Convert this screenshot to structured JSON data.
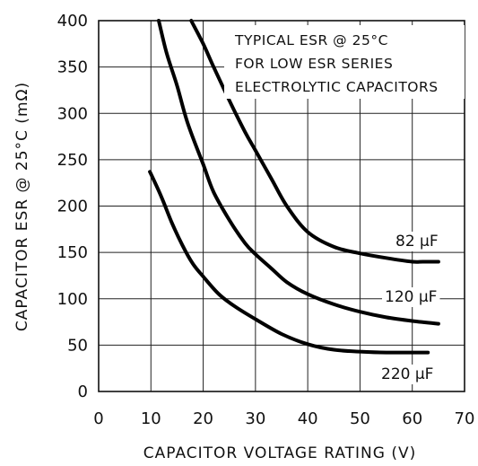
{
  "chart_data": {
    "type": "line",
    "title": "",
    "annotation": [
      "TYPICAL ESR @ 25°C",
      "FOR LOW ESR SERIES",
      "ELECTROLYTIC CAPACITORS"
    ],
    "xlabel": "CAPACITOR VOLTAGE RATING (V)",
    "ylabel": "CAPACITOR ESR @ 25°C (mΩ)",
    "xlim": [
      0,
      70
    ],
    "ylim": [
      0,
      400
    ],
    "xticks": [
      0,
      10,
      20,
      30,
      40,
      50,
      60,
      70
    ],
    "yticks": [
      0,
      50,
      100,
      150,
      200,
      250,
      300,
      350,
      400
    ],
    "grid": true,
    "series": [
      {
        "name": "82 μF",
        "x": [
          17.7,
          20,
          22,
          25,
          28,
          30,
          33,
          36,
          40,
          45,
          50,
          55,
          60,
          62,
          65
        ],
        "y": [
          400,
          375,
          350,
          314,
          280,
          260,
          230,
          200,
          172,
          156,
          149,
          144,
          140,
          140,
          140
        ]
      },
      {
        "name": "120 μF",
        "x": [
          11.5,
          13,
          15,
          17,
          20,
          22,
          25,
          28,
          30,
          33,
          36,
          40,
          45,
          50,
          55,
          60,
          65
        ],
        "y": [
          400,
          365,
          330,
          290,
          245,
          215,
          185,
          160,
          148,
          133,
          118,
          105,
          94,
          86,
          80,
          76,
          73
        ]
      },
      {
        "name": "220 μF",
        "x": [
          9.8,
          12,
          14,
          16,
          18,
          20,
          23,
          26,
          30,
          35,
          40,
          45,
          50,
          55,
          60,
          63
        ],
        "y": [
          237,
          210,
          182,
          158,
          138,
          124,
          105,
          92,
          78,
          62,
          51,
          45,
          43,
          42,
          42,
          42
        ]
      }
    ]
  }
}
